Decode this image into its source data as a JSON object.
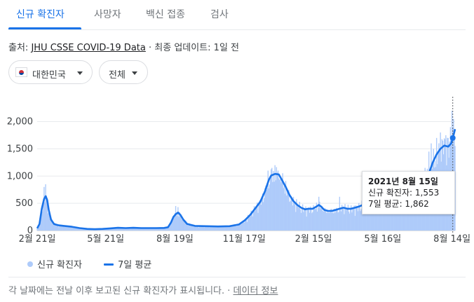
{
  "tabs": [
    {
      "label": "신규 확진자",
      "active": true
    },
    {
      "label": "사망자",
      "active": false
    },
    {
      "label": "백신 접종",
      "active": false
    },
    {
      "label": "검사",
      "active": false
    }
  ],
  "source": {
    "prefix": "출처: ",
    "link": "JHU CSSE COVID-19 Data",
    "dot": " · ",
    "updated": "최종 업데이트: 1일 전"
  },
  "filters": {
    "country": "대한민국",
    "region": "전체"
  },
  "legend": {
    "bars": "신규 확진자",
    "line": "7일 평균"
  },
  "footer": {
    "note": "각 날짜에는 전날 이후 보고된 신규 확진자가 표시됩니다.",
    "dot": " · ",
    "link": "데이터 정보"
  },
  "tooltip": {
    "date": "2021년 8월 15일",
    "cases_label": "신규 확진자: 1,553",
    "avg_label": "7일 평균: 1,862"
  },
  "colors": {
    "accent": "#1a73e8",
    "bars": "#aecbfa",
    "grid": "#e8eaed"
  },
  "chart_data": {
    "type": "bar",
    "title": "",
    "xlabel": "",
    "ylabel": "",
    "ylim": [
      0,
      2200
    ],
    "yticks": [
      0,
      500,
      1000,
      1500,
      2000
    ],
    "ytick_labels": [
      "0",
      "500",
      "1,000",
      "1,500",
      "2,000"
    ],
    "xtick_labels": [
      "2월 21일",
      "5월 21일",
      "8월 19일",
      "11월 17일",
      "2월 15일",
      "5월 16일",
      "8월 14일"
    ],
    "xtick_positions": [
      0,
      89,
      179,
      269,
      359,
      449,
      539
    ],
    "x_range": [
      0,
      543
    ],
    "x_start": "2020-02-21",
    "x_end": "2021-08-17",
    "grid": true,
    "legend_position": "bottom-left",
    "highlight_index": 540,
    "series": [
      {
        "name": "7일 평균",
        "kind": "line",
        "points": [
          [
            0,
            40
          ],
          [
            3,
            120
          ],
          [
            6,
            400
          ],
          [
            9,
            580
          ],
          [
            11,
            630
          ],
          [
            13,
            560
          ],
          [
            15,
            380
          ],
          [
            18,
            200
          ],
          [
            22,
            120
          ],
          [
            28,
            95
          ],
          [
            35,
            85
          ],
          [
            45,
            70
          ],
          [
            55,
            45
          ],
          [
            65,
            30
          ],
          [
            75,
            25
          ],
          [
            85,
            30
          ],
          [
            95,
            40
          ],
          [
            105,
            50
          ],
          [
            115,
            45
          ],
          [
            125,
            50
          ],
          [
            135,
            45
          ],
          [
            145,
            45
          ],
          [
            155,
            45
          ],
          [
            165,
            48
          ],
          [
            170,
            60
          ],
          [
            174,
            150
          ],
          [
            177,
            250
          ],
          [
            180,
            300
          ],
          [
            183,
            330
          ],
          [
            186,
            290
          ],
          [
            190,
            200
          ],
          [
            195,
            120
          ],
          [
            205,
            85
          ],
          [
            220,
            80
          ],
          [
            235,
            75
          ],
          [
            250,
            80
          ],
          [
            262,
            110
          ],
          [
            270,
            190
          ],
          [
            277,
            290
          ],
          [
            283,
            400
          ],
          [
            290,
            530
          ],
          [
            296,
            720
          ],
          [
            301,
            930
          ],
          [
            304,
            1010
          ],
          [
            309,
            1040
          ],
          [
            314,
            1030
          ],
          [
            318,
            930
          ],
          [
            323,
            800
          ],
          [
            328,
            650
          ],
          [
            333,
            540
          ],
          [
            338,
            470
          ],
          [
            343,
            420
          ],
          [
            348,
            390
          ],
          [
            353,
            400
          ],
          [
            358,
            400
          ],
          [
            363,
            440
          ],
          [
            366,
            470
          ],
          [
            369,
            440
          ],
          [
            373,
            380
          ],
          [
            378,
            360
          ],
          [
            383,
            360
          ],
          [
            388,
            380
          ],
          [
            393,
            400
          ],
          [
            398,
            420
          ],
          [
            403,
            400
          ],
          [
            408,
            400
          ],
          [
            413,
            420
          ],
          [
            418,
            440
          ],
          [
            423,
            470
          ],
          [
            427,
            530
          ],
          [
            431,
            600
          ],
          [
            435,
            630
          ],
          [
            440,
            630
          ],
          [
            445,
            600
          ],
          [
            450,
            580
          ],
          [
            455,
            560
          ],
          [
            460,
            580
          ],
          [
            465,
            600
          ],
          [
            470,
            580
          ],
          [
            475,
            600
          ],
          [
            480,
            560
          ],
          [
            485,
            620
          ],
          [
            490,
            640
          ],
          [
            494,
            650
          ],
          [
            498,
            650
          ],
          [
            504,
            850
          ],
          [
            509,
            1050
          ],
          [
            514,
            1250
          ],
          [
            519,
            1400
          ],
          [
            524,
            1500
          ],
          [
            529,
            1560
          ],
          [
            534,
            1540
          ],
          [
            538,
            1600
          ],
          [
            541,
            1750
          ],
          [
            543,
            1862
          ]
        ]
      },
      {
        "name": "신규 확진자",
        "kind": "bars",
        "spikes": [
          [
            9,
            800
          ],
          [
            11,
            850
          ],
          [
            13,
            600
          ],
          [
            180,
            450
          ],
          [
            183,
            430
          ],
          [
            300,
            1100
          ],
          [
            305,
            1150
          ],
          [
            309,
            1200
          ],
          [
            313,
            1100
          ],
          [
            366,
            620
          ],
          [
            393,
            620
          ],
          [
            435,
            760
          ],
          [
            440,
            690
          ],
          [
            485,
            720
          ],
          [
            504,
            1150
          ],
          [
            509,
            1450
          ],
          [
            512,
            1600
          ],
          [
            515,
            1500
          ],
          [
            519,
            1700
          ],
          [
            524,
            1800
          ],
          [
            527,
            1650
          ],
          [
            531,
            1750
          ],
          [
            534,
            1700
          ],
          [
            537,
            1900
          ],
          [
            539,
            2200
          ],
          [
            541,
            2050
          ],
          [
            543,
            1553
          ]
        ]
      }
    ]
  }
}
